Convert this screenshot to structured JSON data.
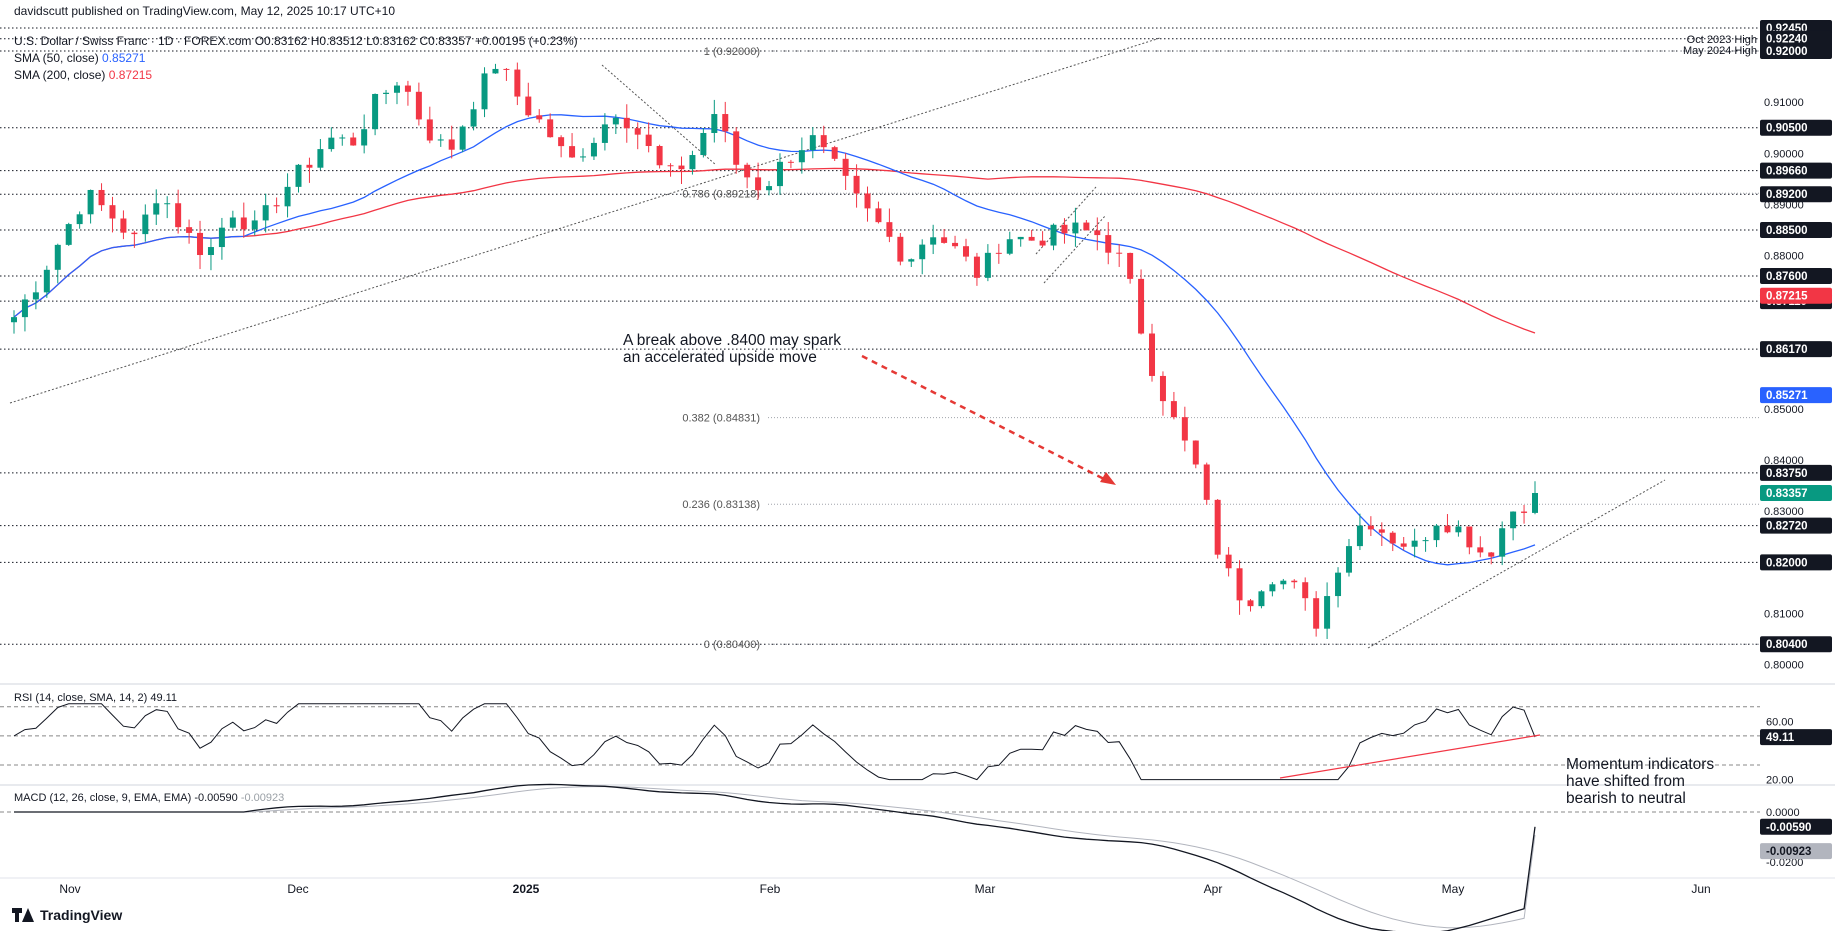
{
  "header": {
    "line1": "U.S. Dollar / Swiss Franc · 1D · FOREX.com  O0.83162  H0.83512  L0.83162  C0.83357  +0.00195 (+0.23%)",
    "publisher": "davidscutt published on TradingView.com, May 12, 2025 10:17 UTC+10",
    "sma50_label": "SMA (50, close)",
    "sma50_value": "0.85271",
    "sma200_label": "SMA (200, close)",
    "sma200_value": "0.87215"
  },
  "annotations": {
    "break_note_line1": "A break above .8400 may spark",
    "break_note_line2": "an accelerated upside move",
    "momentum_line1": "Momentum indicators",
    "momentum_line2": "have shifted from",
    "momentum_line3": "bearish to neutral",
    "oct_high": "Oct 2023 High",
    "may_high": "May 2024 High"
  },
  "fib_labels": [
    {
      "text": "1 (0.92000)",
      "value": 0.92
    },
    {
      "text": "0.786 (0.89218)",
      "value": 0.89218
    },
    {
      "text": "0.382 (0.84831)",
      "value": 0.84831
    },
    {
      "text": "0.236 (0.83138)",
      "value": 0.83138
    },
    {
      "text": "0 (0.80400)",
      "value": 0.804
    }
  ],
  "rsi": {
    "label": "RSI (14, close, SMA, 14, 2)",
    "value": "49.11",
    "axis": [
      "60.00",
      "20.00"
    ]
  },
  "macd": {
    "label": "MACD (12, 26, close, 9, EMA, EMA)",
    "value": "-0.00590",
    "signal_value": "-0.00923",
    "axis": [
      "0.0000",
      "-0.0200"
    ]
  },
  "brand": "TradingView",
  "colors": {
    "up": "#089981",
    "down": "#f23645",
    "sma50": "#2962ff",
    "sma200": "#f23645",
    "arrow": "#e53935"
  },
  "chart_data": {
    "type": "candlestick",
    "title": "U.S. Dollar / Swiss Franc · 1D · FOREX.com",
    "x_tick_labels": [
      "Nov",
      "Dec",
      "2025",
      "Feb",
      "Mar",
      "Apr",
      "May",
      "Jun"
    ],
    "price_axis_labels": [
      "0.91000",
      "0.90000",
      "0.89000",
      "0.88000",
      "0.85000",
      "0.84000",
      "0.83000",
      "0.81000",
      "0.80000"
    ],
    "ylim": [
      0.797,
      0.9245
    ],
    "horizontal_levels": [
      {
        "label": "0.92450",
        "value": 0.9245
      },
      {
        "label": "0.92240",
        "value": 0.9224
      },
      {
        "label": "0.92000",
        "value": 0.92
      },
      {
        "label": "0.90500",
        "value": 0.905
      },
      {
        "label": "0.89660",
        "value": 0.8966
      },
      {
        "label": "0.89200",
        "value": 0.892
      },
      {
        "label": "0.88500",
        "value": 0.885
      },
      {
        "label": "0.87600",
        "value": 0.876
      },
      {
        "label": "0.87110",
        "value": 0.8711
      },
      {
        "label": "0.86170",
        "value": 0.8617
      },
      {
        "label": "0.83750",
        "value": 0.8375
      },
      {
        "label": "0.82720",
        "value": 0.8272
      },
      {
        "label": "0.82000",
        "value": 0.82
      },
      {
        "label": "0.80400",
        "value": 0.804
      }
    ],
    "price_tags": [
      {
        "label": "0.87215",
        "value": 0.87215,
        "color": "#f23645"
      },
      {
        "label": "0.85271",
        "value": 0.85271,
        "color": "#2962ff"
      },
      {
        "label": "0.83357",
        "value": 0.83357,
        "color": "#089981"
      }
    ],
    "close_path": [
      0.868,
      0.875,
      0.884,
      0.892,
      0.888,
      0.883,
      0.893,
      0.885,
      0.88,
      0.889,
      0.885,
      0.892,
      0.897,
      0.903,
      0.902,
      0.91,
      0.915,
      0.905,
      0.9,
      0.91,
      0.918,
      0.91,
      0.905,
      0.898,
      0.903,
      0.909,
      0.903,
      0.895,
      0.899,
      0.908,
      0.897,
      0.893,
      0.899,
      0.903,
      0.897,
      0.89,
      0.885,
      0.879,
      0.885,
      0.881,
      0.876,
      0.884,
      0.883,
      0.884,
      0.885,
      0.884,
      0.878,
      0.86,
      0.848,
      0.838,
      0.82,
      0.812,
      0.818,
      0.815,
      0.808,
      0.822,
      0.829,
      0.825,
      0.823,
      0.829,
      0.826,
      0.821,
      0.83,
      0.833
    ],
    "candles": 140,
    "sma50_range": [
      0.8527,
      0.9055
    ],
    "sma200_range": [
      0.8721,
      0.8825
    ],
    "rsi_last": 49.11,
    "macd_last": -0.0059,
    "macd_signal_last": -0.00923
  }
}
